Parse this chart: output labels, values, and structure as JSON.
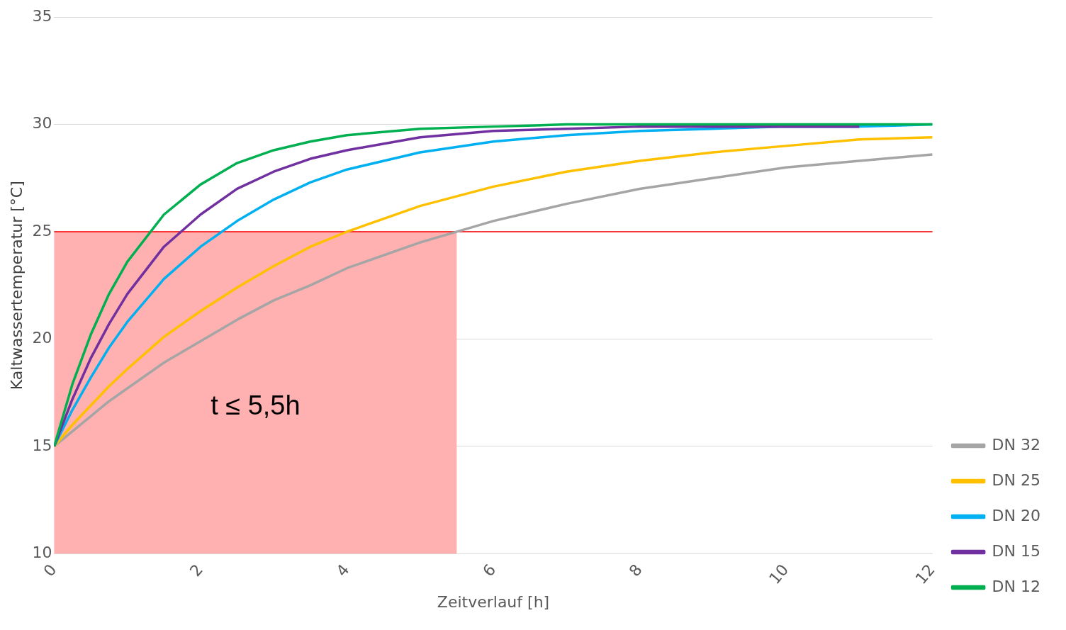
{
  "chart_data": {
    "type": "line",
    "xlabel": "Zeitverlauf [h]",
    "ylabel": "Kaltwassertemperatur [°C]",
    "x": [
      0,
      0.25,
      0.5,
      0.75,
      1,
      1.5,
      2,
      2.5,
      3,
      3.5,
      4,
      5,
      6,
      7,
      8,
      9,
      10,
      11,
      12
    ],
    "series": [
      {
        "name": "DN 32",
        "color": "#a5a5a5",
        "values": [
          15,
          15.7,
          16.4,
          17.1,
          17.7,
          18.9,
          19.9,
          20.9,
          21.8,
          22.5,
          23.3,
          24.5,
          25.5,
          26.3,
          27.0,
          27.5,
          28.0,
          28.3,
          28.6
        ]
      },
      {
        "name": "DN 25",
        "color": "#ffc000",
        "values": [
          15,
          16.0,
          16.9,
          17.8,
          18.6,
          20.1,
          21.3,
          22.4,
          23.4,
          24.3,
          25.0,
          26.2,
          27.1,
          27.8,
          28.3,
          28.7,
          29.0,
          29.3,
          29.4
        ]
      },
      {
        "name": "DN 20",
        "color": "#00b0f0",
        "values": [
          15,
          16.7,
          18.2,
          19.6,
          20.8,
          22.8,
          24.3,
          25.5,
          26.5,
          27.3,
          27.9,
          28.7,
          29.2,
          29.5,
          29.7,
          29.8,
          29.9,
          29.9,
          30
        ]
      },
      {
        "name": "DN 15",
        "color": "#7030a0",
        "values": [
          15,
          17.2,
          19.1,
          20.7,
          22.1,
          24.3,
          25.8,
          27.0,
          27.8,
          28.4,
          28.8,
          29.4,
          29.7,
          29.8,
          29.9,
          29.9,
          29.9,
          29.9,
          null
        ]
      },
      {
        "name": "DN 12",
        "color": "#00b050",
        "values": [
          15,
          17.9,
          20.2,
          22.1,
          23.6,
          25.8,
          27.2,
          28.2,
          28.8,
          29.2,
          29.5,
          29.8,
          29.9,
          30,
          30,
          30,
          30,
          30,
          30
        ]
      }
    ],
    "xlim": [
      0,
      12
    ],
    "xticks": [
      0,
      2,
      4,
      6,
      8,
      10,
      12
    ],
    "ylim": [
      10,
      35
    ],
    "yticks": [
      10,
      15,
      20,
      25,
      30,
      35
    ],
    "ref_lines": [
      {
        "axis": "y",
        "value": 25,
        "color": "#ff0000"
      }
    ],
    "bands": [
      {
        "axis": "x",
        "from": 0,
        "to": 5.5,
        "color": "#ffb0b0"
      }
    ],
    "annotations": [
      "t ≤ 5,5h"
    ],
    "grid": "y",
    "legend": "right",
    "marker": "none",
    "line_style": "solid"
  }
}
